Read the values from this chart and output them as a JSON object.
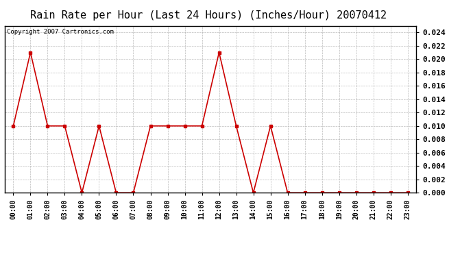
{
  "title": "Rain Rate per Hour (Last 24 Hours) (Inches/Hour) 20070412",
  "copyright_text": "Copyright 2007 Cartronics.com",
  "x_labels": [
    "00:00",
    "01:00",
    "02:00",
    "03:00",
    "04:00",
    "05:00",
    "06:00",
    "07:00",
    "08:00",
    "09:00",
    "10:00",
    "11:00",
    "12:00",
    "13:00",
    "14:00",
    "15:00",
    "16:00",
    "17:00",
    "18:00",
    "19:00",
    "20:00",
    "21:00",
    "22:00",
    "23:00"
  ],
  "y_values": [
    0.01,
    0.021,
    0.01,
    0.01,
    0.0,
    0.01,
    0.0,
    0.0,
    0.01,
    0.01,
    0.01,
    0.01,
    0.021,
    0.01,
    0.0,
    0.01,
    0.0,
    0.0,
    0.0,
    0.0,
    0.0,
    0.0,
    0.0,
    0.0
  ],
  "line_color": "#cc0000",
  "marker_color": "#cc0000",
  "background_color": "#ffffff",
  "plot_bg_color": "#ffffff",
  "grid_color": "#aaaaaa",
  "ylim": [
    0,
    0.025
  ],
  "yticks": [
    0.0,
    0.002,
    0.004,
    0.006,
    0.008,
    0.01,
    0.012,
    0.014,
    0.016,
    0.018,
    0.02,
    0.022,
    0.024
  ],
  "title_fontsize": 11,
  "copyright_fontsize": 6.5,
  "tick_fontsize": 7,
  "ytick_fontsize": 8
}
